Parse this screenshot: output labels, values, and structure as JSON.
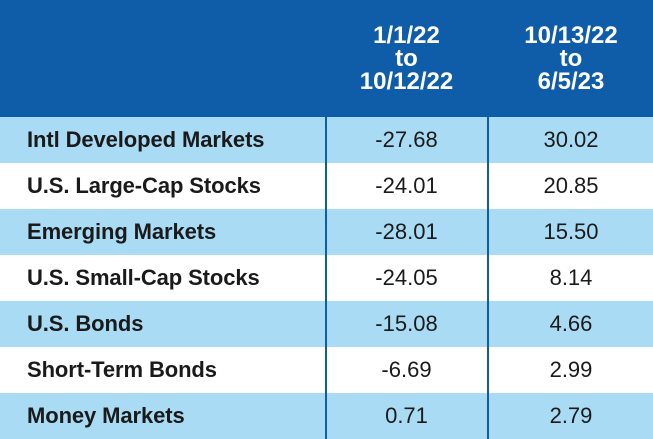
{
  "chart_data": {
    "type": "table",
    "columns": [
      "",
      "1/1/22 to 10/12/22",
      "10/13/22 to 6/5/23"
    ],
    "header": [
      [
        "1/1/22",
        "to",
        "10/12/22"
      ],
      [
        "10/13/22",
        "to",
        "6/5/23"
      ]
    ],
    "rows": [
      {
        "label": "Intl Developed Markets",
        "v1": "-27.68",
        "v2": "30.02"
      },
      {
        "label": "U.S. Large-Cap Stocks",
        "v1": "-24.01",
        "v2": "20.85"
      },
      {
        "label": "Emerging Markets",
        "v1": "-28.01",
        "v2": "15.50"
      },
      {
        "label": "U.S. Small-Cap Stocks",
        "v1": "-24.05",
        "v2": "8.14"
      },
      {
        "label": "U.S. Bonds",
        "v1": "-15.08",
        "v2": "4.66"
      },
      {
        "label": "Short-Term Bonds",
        "v1": "-6.69",
        "v2": "2.99"
      },
      {
        "label": "Money Markets",
        "v1": "0.71",
        "v2": "2.79"
      }
    ]
  },
  "colors": {
    "header_bg": "#0f5ca8",
    "shaded_row": "#a9dbf5",
    "plain_row": "#ffffff",
    "header_text": "#ffffff",
    "body_text": "#1a1a1a"
  }
}
